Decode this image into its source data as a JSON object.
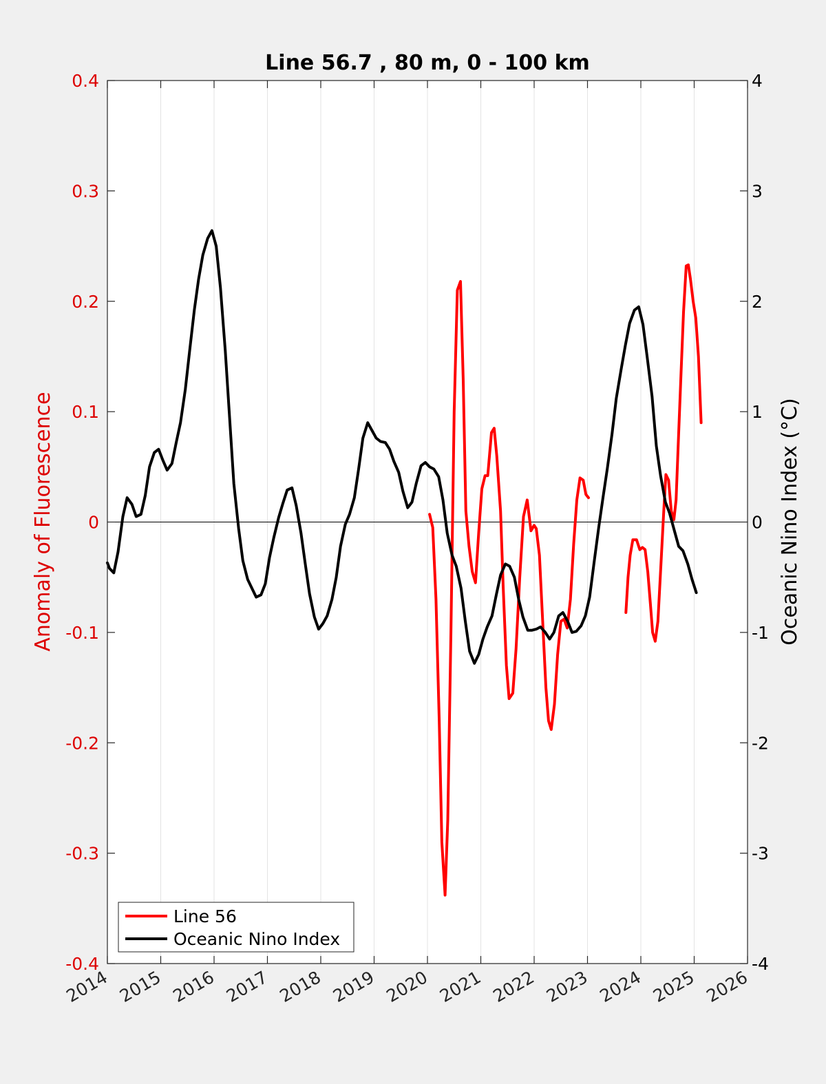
{
  "chart_data": {
    "type": "line",
    "title": "Line 56.7 , 80 m, 0 - 100 km",
    "xlabel": "",
    "ylabel_left": "Anomaly of Fluorescence",
    "ylabel_right": "Oceanic Nino Index (°C)",
    "xlim": [
      2014,
      2026
    ],
    "ylim_left": [
      -0.4,
      0.4
    ],
    "ylim_right": [
      -4,
      4
    ],
    "x_ticks": [
      "2014",
      "2015",
      "2016",
      "2017",
      "2018",
      "2019",
      "2020",
      "2021",
      "2022",
      "2023",
      "2024",
      "2025",
      "2026"
    ],
    "y_ticks_left": [
      "0.4",
      "0.3",
      "0.2",
      "0.1",
      "0",
      "-0.1",
      "-0.2",
      "-0.3",
      "-0.4"
    ],
    "y_ticks_right": [
      "4",
      "3",
      "2",
      "1",
      "0",
      "-1",
      "-2",
      "-3",
      "-4"
    ],
    "grid": "vertical",
    "legend_position": "bottom-left",
    "colors": {
      "line56": "#ff0000",
      "oni": "#000000",
      "left_axis": "#dd0000",
      "right_axis": "#000000"
    },
    "series": [
      {
        "name": "Line 56",
        "axis": "left",
        "color": "#ff0000",
        "segments": [
          [
            [
              2020.04,
              0.007
            ],
            [
              2020.1,
              -0.005
            ],
            [
              2020.16,
              -0.07
            ],
            [
              2020.22,
              -0.18
            ],
            [
              2020.27,
              -0.29
            ],
            [
              2020.33,
              -0.338
            ],
            [
              2020.38,
              -0.27
            ],
            [
              2020.44,
              -0.1
            ],
            [
              2020.5,
              0.1
            ],
            [
              2020.56,
              0.21
            ],
            [
              2020.62,
              0.218
            ],
            [
              2020.67,
              0.13
            ],
            [
              2020.72,
              0.01
            ],
            [
              2020.78,
              -0.022
            ],
            [
              2020.84,
              -0.045
            ],
            [
              2020.9,
              -0.055
            ],
            [
              2020.96,
              -0.01
            ],
            [
              2021.02,
              0.03
            ],
            [
              2021.08,
              0.042
            ],
            [
              2021.13,
              0.042
            ],
            [
              2021.2,
              0.081
            ],
            [
              2021.25,
              0.085
            ],
            [
              2021.3,
              0.06
            ],
            [
              2021.37,
              0.01
            ],
            [
              2021.42,
              -0.06
            ],
            [
              2021.48,
              -0.13
            ],
            [
              2021.53,
              -0.16
            ],
            [
              2021.6,
              -0.155
            ],
            [
              2021.66,
              -0.115
            ],
            [
              2021.73,
              -0.05
            ],
            [
              2021.8,
              0.005
            ],
            [
              2021.87,
              0.02
            ],
            [
              2021.94,
              -0.008
            ],
            [
              2022.0,
              -0.003
            ],
            [
              2022.04,
              -0.006
            ],
            [
              2022.1,
              -0.03
            ],
            [
              2022.16,
              -0.09
            ],
            [
              2022.22,
              -0.15
            ],
            [
              2022.27,
              -0.18
            ],
            [
              2022.32,
              -0.188
            ],
            [
              2022.38,
              -0.165
            ],
            [
              2022.44,
              -0.12
            ],
            [
              2022.5,
              -0.09
            ],
            [
              2022.56,
              -0.088
            ],
            [
              2022.62,
              -0.096
            ],
            [
              2022.68,
              -0.07
            ],
            [
              2022.74,
              -0.02
            ],
            [
              2022.8,
              0.02
            ],
            [
              2022.86,
              0.04
            ],
            [
              2022.92,
              0.038
            ],
            [
              2022.97,
              0.025
            ],
            [
              2023.02,
              0.022
            ]
          ],
          [
            [
              2023.72,
              -0.082
            ],
            [
              2023.76,
              -0.05
            ],
            [
              2023.8,
              -0.03
            ],
            [
              2023.85,
              -0.016
            ],
            [
              2023.92,
              -0.016
            ],
            [
              2023.98,
              -0.025
            ],
            [
              2024.03,
              -0.023
            ],
            [
              2024.08,
              -0.025
            ],
            [
              2024.13,
              -0.045
            ],
            [
              2024.18,
              -0.075
            ],
            [
              2024.22,
              -0.1
            ],
            [
              2024.27,
              -0.108
            ],
            [
              2024.32,
              -0.09
            ],
            [
              2024.38,
              -0.035
            ],
            [
              2024.43,
              0.01
            ],
            [
              2024.47,
              0.043
            ],
            [
              2024.52,
              0.038
            ],
            [
              2024.57,
              0.01
            ],
            [
              2024.62,
              0.002
            ],
            [
              2024.66,
              0.02
            ],
            [
              2024.7,
              0.07
            ],
            [
              2024.75,
              0.13
            ],
            [
              2024.8,
              0.19
            ],
            [
              2024.85,
              0.232
            ],
            [
              2024.89,
              0.233
            ],
            [
              2024.93,
              0.22
            ],
            [
              2024.98,
              0.2
            ],
            [
              2025.03,
              0.185
            ],
            [
              2025.08,
              0.15
            ],
            [
              2025.13,
              0.09
            ]
          ]
        ]
      },
      {
        "name": "Oceanic Nino Index",
        "axis": "right",
        "color": "#000000",
        "segments": [
          [
            [
              2014.0,
              -0.37
            ],
            [
              2014.04,
              -0.42
            ],
            [
              2014.12,
              -0.46
            ],
            [
              2014.2,
              -0.27
            ],
            [
              2014.29,
              0.05
            ],
            [
              2014.37,
              0.22
            ],
            [
              2014.46,
              0.16
            ],
            [
              2014.54,
              0.05
            ],
            [
              2014.63,
              0.07
            ],
            [
              2014.71,
              0.24
            ],
            [
              2014.79,
              0.5
            ],
            [
              2014.88,
              0.63
            ],
            [
              2014.96,
              0.66
            ],
            [
              2015.04,
              0.56
            ],
            [
              2015.12,
              0.47
            ],
            [
              2015.21,
              0.53
            ],
            [
              2015.29,
              0.72
            ],
            [
              2015.37,
              0.9
            ],
            [
              2015.46,
              1.2
            ],
            [
              2015.54,
              1.54
            ],
            [
              2015.63,
              1.92
            ],
            [
              2015.71,
              2.2
            ],
            [
              2015.79,
              2.42
            ],
            [
              2015.88,
              2.57
            ],
            [
              2015.96,
              2.64
            ],
            [
              2016.04,
              2.5
            ],
            [
              2016.12,
              2.12
            ],
            [
              2016.21,
              1.55
            ],
            [
              2016.29,
              0.95
            ],
            [
              2016.37,
              0.35
            ],
            [
              2016.46,
              -0.06
            ],
            [
              2016.54,
              -0.35
            ],
            [
              2016.63,
              -0.52
            ],
            [
              2016.71,
              -0.6
            ],
            [
              2016.79,
              -0.68
            ],
            [
              2016.88,
              -0.66
            ],
            [
              2016.96,
              -0.56
            ],
            [
              2017.04,
              -0.32
            ],
            [
              2017.12,
              -0.14
            ],
            [
              2017.21,
              0.04
            ],
            [
              2017.29,
              0.17
            ],
            [
              2017.37,
              0.29
            ],
            [
              2017.46,
              0.31
            ],
            [
              2017.54,
              0.15
            ],
            [
              2017.63,
              -0.1
            ],
            [
              2017.71,
              -0.38
            ],
            [
              2017.79,
              -0.65
            ],
            [
              2017.88,
              -0.86
            ],
            [
              2017.96,
              -0.97
            ],
            [
              2018.04,
              -0.92
            ],
            [
              2018.12,
              -0.85
            ],
            [
              2018.21,
              -0.7
            ],
            [
              2018.29,
              -0.5
            ],
            [
              2018.37,
              -0.22
            ],
            [
              2018.46,
              -0.02
            ],
            [
              2018.54,
              0.07
            ],
            [
              2018.63,
              0.22
            ],
            [
              2018.71,
              0.48
            ],
            [
              2018.79,
              0.76
            ],
            [
              2018.88,
              0.9
            ],
            [
              2018.96,
              0.83
            ],
            [
              2019.04,
              0.76
            ],
            [
              2019.12,
              0.73
            ],
            [
              2019.21,
              0.72
            ],
            [
              2019.29,
              0.66
            ],
            [
              2019.37,
              0.55
            ],
            [
              2019.46,
              0.45
            ],
            [
              2019.54,
              0.28
            ],
            [
              2019.63,
              0.13
            ],
            [
              2019.71,
              0.18
            ],
            [
              2019.79,
              0.35
            ],
            [
              2019.88,
              0.51
            ],
            [
              2019.96,
              0.54
            ],
            [
              2020.04,
              0.5
            ],
            [
              2020.12,
              0.48
            ],
            [
              2020.21,
              0.41
            ],
            [
              2020.29,
              0.2
            ],
            [
              2020.37,
              -0.1
            ],
            [
              2020.46,
              -0.3
            ],
            [
              2020.54,
              -0.4
            ],
            [
              2020.63,
              -0.6
            ],
            [
              2020.71,
              -0.9
            ],
            [
              2020.79,
              -1.17
            ],
            [
              2020.88,
              -1.28
            ],
            [
              2020.96,
              -1.2
            ],
            [
              2021.04,
              -1.06
            ],
            [
              2021.12,
              -0.95
            ],
            [
              2021.21,
              -0.85
            ],
            [
              2021.29,
              -0.66
            ],
            [
              2021.37,
              -0.48
            ],
            [
              2021.46,
              -0.38
            ],
            [
              2021.54,
              -0.4
            ],
            [
              2021.63,
              -0.5
            ],
            [
              2021.71,
              -0.7
            ],
            [
              2021.79,
              -0.86
            ],
            [
              2021.88,
              -0.98
            ],
            [
              2021.96,
              -0.98
            ],
            [
              2022.04,
              -0.97
            ],
            [
              2022.12,
              -0.95
            ],
            [
              2022.21,
              -1.0
            ],
            [
              2022.29,
              -1.06
            ],
            [
              2022.37,
              -1.0
            ],
            [
              2022.46,
              -0.85
            ],
            [
              2022.54,
              -0.82
            ],
            [
              2022.63,
              -0.9
            ],
            [
              2022.71,
              -1.0
            ],
            [
              2022.79,
              -0.99
            ],
            [
              2022.88,
              -0.94
            ],
            [
              2022.96,
              -0.85
            ],
            [
              2023.04,
              -0.68
            ],
            [
              2023.12,
              -0.38
            ],
            [
              2023.21,
              -0.05
            ],
            [
              2023.29,
              0.22
            ],
            [
              2023.37,
              0.48
            ],
            [
              2023.46,
              0.8
            ],
            [
              2023.54,
              1.12
            ],
            [
              2023.63,
              1.38
            ],
            [
              2023.71,
              1.6
            ],
            [
              2023.79,
              1.8
            ],
            [
              2023.88,
              1.92
            ],
            [
              2023.96,
              1.95
            ],
            [
              2024.04,
              1.79
            ],
            [
              2024.12,
              1.49
            ],
            [
              2024.21,
              1.14
            ],
            [
              2024.29,
              0.69
            ],
            [
              2024.37,
              0.42
            ],
            [
              2024.46,
              0.18
            ],
            [
              2024.54,
              0.08
            ],
            [
              2024.63,
              -0.08
            ],
            [
              2024.71,
              -0.22
            ],
            [
              2024.79,
              -0.26
            ],
            [
              2024.88,
              -0.38
            ],
            [
              2024.96,
              -0.52
            ],
            [
              2025.04,
              -0.64
            ]
          ]
        ]
      }
    ],
    "legend": [
      {
        "label": "Line 56",
        "color": "#ff0000"
      },
      {
        "label": "Oceanic Nino Index",
        "color": "#000000"
      }
    ]
  }
}
